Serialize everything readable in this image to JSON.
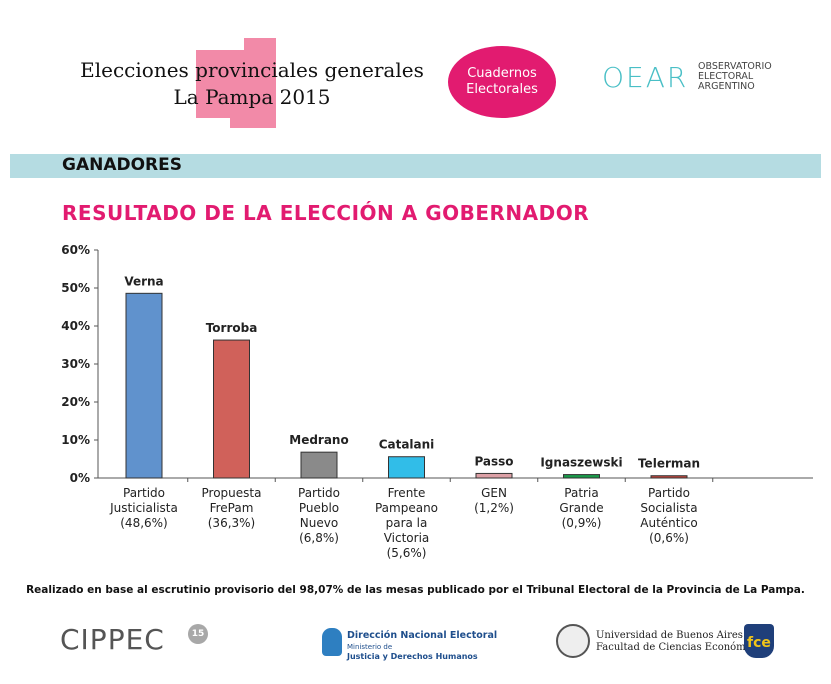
{
  "header": {
    "title_line1": "Elecciones provinciales generales",
    "title_line2": "La Pampa 2015",
    "badge_line1": "Cuadernos",
    "badge_line2": "Electorales",
    "oear_logo": "OEAR",
    "oear_text_line1": "OBSERVATORIO",
    "oear_text_line2": "ELECTORAL",
    "oear_text_line3": "ARGENTINO",
    "accent_pink": "#e21b70",
    "accent_teal": "#49bfc6",
    "shape_color": "#f28aa8"
  },
  "section_label": "GANADORES",
  "band_color": "#b5dce2",
  "chart_data": {
    "type": "bar",
    "title": "RESULTADO DE LA ELECCIÓN A GOBERNADOR",
    "xlabel": "",
    "ylabel": "",
    "ylim": [
      0,
      60
    ],
    "yticks": [
      "0%",
      "10%",
      "20%",
      "30%",
      "40%",
      "50%",
      "60%"
    ],
    "grid": false,
    "candidates": [
      "Verna",
      "Torroba",
      "Medrano",
      "Catalani",
      "Passo",
      "Ignaszewski",
      "Telerman"
    ],
    "categories": [
      [
        "Partido",
        "Justicialista",
        "(48,6%)"
      ],
      [
        "Propuesta",
        "FrePam",
        "(36,3%)"
      ],
      [
        "Partido",
        "Pueblo",
        "Nuevo",
        "(6,8%)"
      ],
      [
        "Frente",
        "Pampeano",
        "para la",
        "Victoria",
        "(5,6%)"
      ],
      [
        "GEN",
        "(1,2%)"
      ],
      [
        "Patria",
        "Grande",
        "(0,9%)"
      ],
      [
        "Partido",
        "Socialista",
        "Auténtico",
        "(0,6%)"
      ]
    ],
    "values": [
      48.6,
      36.3,
      6.8,
      5.6,
      1.2,
      0.9,
      0.6
    ],
    "colors": [
      "#6092cd",
      "#d0615a",
      "#8a8a8a",
      "#31bde8",
      "#dca0a6",
      "#1a9a4a",
      "#c0463e"
    ]
  },
  "footnote": "Realizado en base al escrutinio provisorio del 98,07% de las mesas publicado por el Tribunal Electoral de la Provincia de La Pampa.",
  "footer": {
    "cippec": "CIPPEC",
    "cippec_badge": "15",
    "dine_line1": "Dirección Nacional Electoral",
    "dine_line2": "Ministerio de",
    "dine_line3": "Justicia y Derechos Humanos",
    "uba_line1": "Universidad de Buenos Aires",
    "uba_line2": "Facultad de Ciencias Económicas",
    "fce_badge": "fce"
  }
}
